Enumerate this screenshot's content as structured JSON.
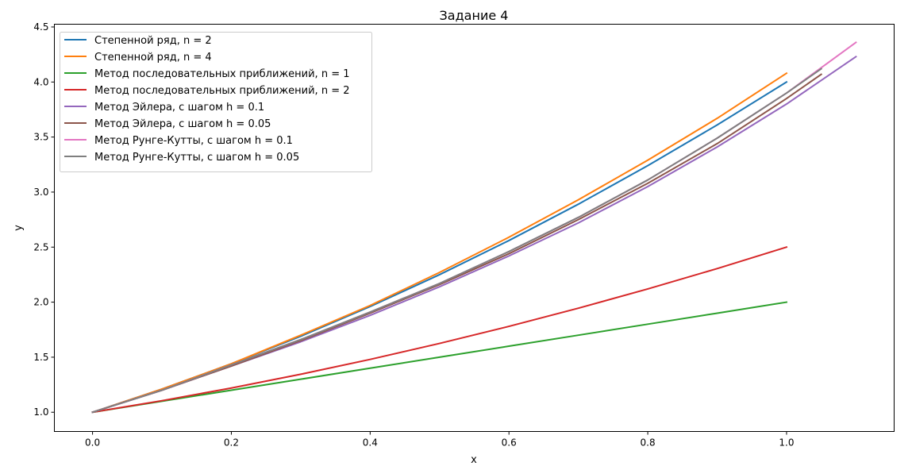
{
  "chart_data": {
    "type": "line",
    "title": "Задание 4",
    "xlabel": "x",
    "ylabel": "y",
    "xlim": [
      -0.055,
      1.155
    ],
    "ylim": [
      0.825,
      4.525
    ],
    "xticks": [
      "0.0",
      "0.2",
      "0.4",
      "0.6",
      "0.8",
      "1.0"
    ],
    "xtick_values": [
      0.0,
      0.2,
      0.4,
      0.6,
      0.8,
      1.0
    ],
    "yticks": [
      "1.0",
      "1.5",
      "2.0",
      "2.5",
      "3.0",
      "3.5",
      "4.0",
      "4.5"
    ],
    "ytick_values": [
      1.0,
      1.5,
      2.0,
      2.5,
      3.0,
      3.5,
      4.0,
      4.5
    ],
    "grid": false,
    "legend_position": "top-left",
    "series": [
      {
        "name": "Степенной ряд, n = 2",
        "color": "#1f77b4",
        "x": [
          0.0,
          0.1,
          0.2,
          0.3,
          0.4,
          0.5,
          0.6,
          0.7,
          0.8,
          0.9,
          1.0
        ],
        "y": [
          1.0,
          1.21,
          1.44,
          1.69,
          1.96,
          2.25,
          2.56,
          2.89,
          3.24,
          3.61,
          4.0
        ]
      },
      {
        "name": "Степенной ряд, n = 4",
        "color": "#ff7f0e",
        "x": [
          0.0,
          0.1,
          0.2,
          0.3,
          0.4,
          0.5,
          0.6,
          0.7,
          0.8,
          0.9,
          1.0
        ],
        "y": [
          1.0,
          1.21,
          1.44,
          1.7,
          1.97,
          2.27,
          2.59,
          2.93,
          3.29,
          3.67,
          4.08
        ]
      },
      {
        "name": "Метод последовательных приближений, n = 1",
        "color": "#2ca02c",
        "x": [
          0.0,
          0.1,
          0.2,
          0.3,
          0.4,
          0.5,
          0.6,
          0.7,
          0.8,
          0.9,
          1.0
        ],
        "y": [
          1.0,
          1.1,
          1.2,
          1.3,
          1.4,
          1.5,
          1.6,
          1.7,
          1.8,
          1.9,
          2.0
        ]
      },
      {
        "name": "Метод последовательных приближений, n = 2",
        "color": "#d62728",
        "x": [
          0.0,
          0.1,
          0.2,
          0.3,
          0.4,
          0.5,
          0.6,
          0.7,
          0.8,
          0.9,
          1.0
        ],
        "y": [
          1.0,
          1.105,
          1.22,
          1.345,
          1.48,
          1.625,
          1.78,
          1.945,
          2.12,
          2.305,
          2.5
        ]
      },
      {
        "name": "Метод Эйлера, с шагом h = 0.1",
        "color": "#9467bd",
        "x": [
          0.0,
          0.1,
          0.2,
          0.3,
          0.4,
          0.5,
          0.6,
          0.7,
          0.8,
          0.9,
          1.0,
          1.1
        ],
        "y": [
          1.0,
          1.2,
          1.42,
          1.64,
          1.88,
          2.14,
          2.42,
          2.72,
          3.05,
          3.41,
          3.8,
          4.23
        ]
      },
      {
        "name": "Метод Эйлера, с шагом h = 0.05",
        "color": "#8c564b",
        "x": [
          0.0,
          0.1,
          0.2,
          0.3,
          0.4,
          0.5,
          0.6,
          0.7,
          0.8,
          0.9,
          1.0,
          1.05
        ],
        "y": [
          1.0,
          1.2,
          1.42,
          1.65,
          1.9,
          2.16,
          2.44,
          2.75,
          3.08,
          3.44,
          3.85,
          4.07
        ]
      },
      {
        "name": "Метод Рунге-Кутты, с шагом h = 0.1",
        "color": "#e377c2",
        "x": [
          0.0,
          0.1,
          0.2,
          0.3,
          0.4,
          0.5,
          0.6,
          0.7,
          0.8,
          0.9,
          1.0,
          1.1
        ],
        "y": [
          1.0,
          1.2,
          1.43,
          1.66,
          1.91,
          2.17,
          2.46,
          2.77,
          3.11,
          3.49,
          3.9,
          4.36
        ]
      },
      {
        "name": "Метод Рунге-Кутты, с шагом h = 0.05",
        "color": "#7f7f7f",
        "x": [
          0.0,
          0.1,
          0.2,
          0.3,
          0.4,
          0.5,
          0.6,
          0.7,
          0.8,
          0.9,
          1.0,
          1.05
        ],
        "y": [
          1.0,
          1.2,
          1.43,
          1.66,
          1.91,
          2.17,
          2.46,
          2.77,
          3.11,
          3.49,
          3.9,
          4.12
        ]
      }
    ]
  }
}
